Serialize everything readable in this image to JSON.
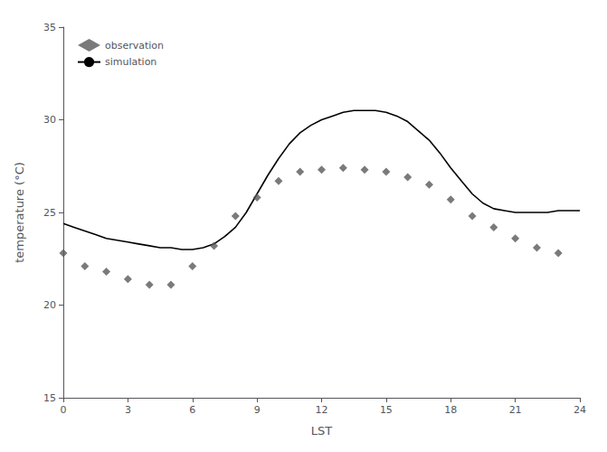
{
  "chart_data": {
    "type": "line",
    "xlabel": "LST",
    "ylabel": "temperature (°C)",
    "series": [
      {
        "name": "observation",
        "type": "scatter",
        "marker": "diamond",
        "color": "#595959",
        "x": [
          0,
          1,
          2,
          3,
          4,
          5,
          6,
          7,
          8,
          9,
          10,
          11,
          12,
          13,
          14,
          15,
          16,
          17,
          18,
          19,
          20,
          21,
          22,
          23
        ],
        "values": [
          22.8,
          22.1,
          21.8,
          21.4,
          21.1,
          21.1,
          22.1,
          23.2,
          24.8,
          25.8,
          26.7,
          27.2,
          27.3,
          27.4,
          27.3,
          27.2,
          26.9,
          26.5,
          25.7,
          24.8,
          24.2,
          23.6,
          23.1,
          22.8
        ]
      },
      {
        "name": "simulation",
        "type": "line",
        "line_style": "solid",
        "color": "#000000",
        "x": [
          0,
          0.5,
          1,
          1.5,
          2,
          2.5,
          3,
          3.5,
          4,
          4.5,
          5,
          5.5,
          6,
          6.5,
          7,
          7.5,
          8,
          8.5,
          9,
          9.5,
          10,
          10.5,
          11,
          11.5,
          12,
          12.5,
          13,
          13.5,
          14,
          14.5,
          15,
          15.5,
          16,
          16.5,
          17,
          17.5,
          18,
          18.5,
          19,
          19.5,
          20,
          20.5,
          21,
          21.5,
          22,
          22.5,
          23,
          23.5,
          24
        ],
        "values": [
          24.4,
          24.2,
          24.0,
          23.8,
          23.6,
          23.5,
          23.4,
          23.3,
          23.2,
          23.1,
          23.1,
          23.0,
          23.0,
          23.1,
          23.3,
          23.7,
          24.2,
          25.0,
          26.0,
          27.0,
          27.9,
          28.7,
          29.3,
          29.7,
          30.0,
          30.2,
          30.4,
          30.5,
          30.5,
          30.5,
          30.4,
          30.2,
          29.9,
          29.4,
          28.9,
          28.2,
          27.4,
          26.7,
          26.0,
          25.5,
          25.2,
          25.1,
          25.0,
          25.0,
          25.0,
          25.0,
          25.1,
          25.1,
          25.1
        ]
      }
    ],
    "xlim": [
      0,
      24
    ],
    "ylim": [
      15,
      35
    ],
    "xticks": [
      0,
      3,
      6,
      9,
      12,
      15,
      18,
      21,
      24
    ],
    "yticks": [
      15,
      20,
      25,
      30,
      35
    ],
    "grid": false,
    "legend": "upper left"
  }
}
